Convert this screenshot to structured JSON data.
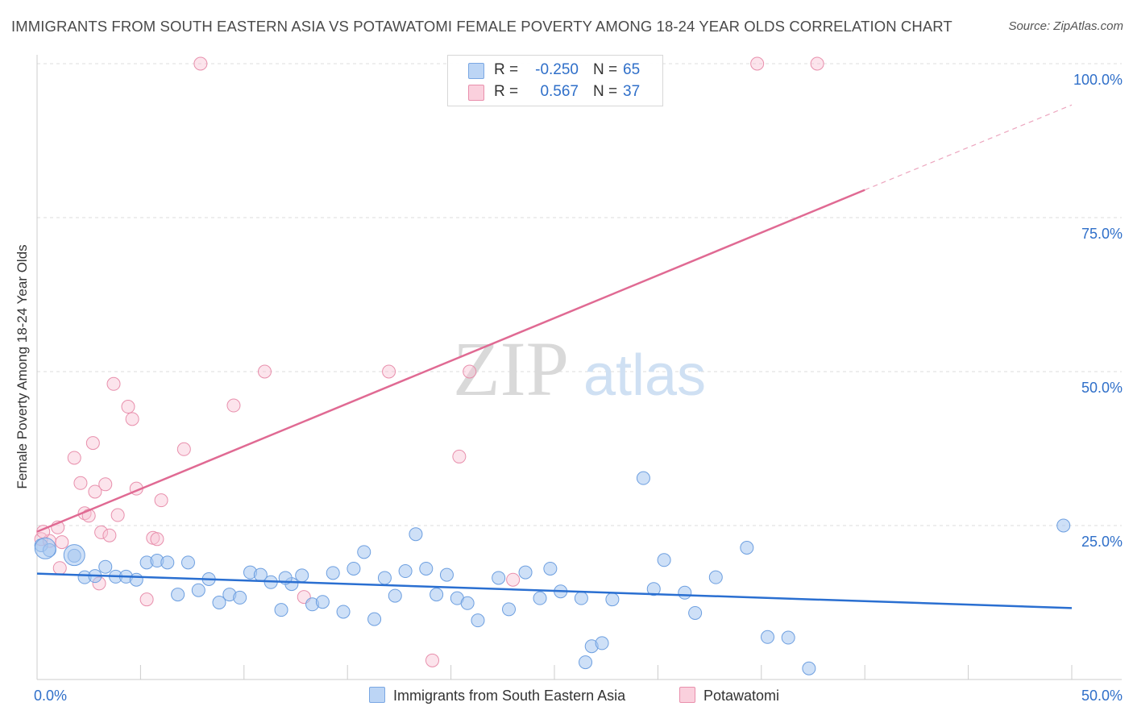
{
  "title": "IMMIGRANTS FROM SOUTH EASTERN ASIA VS POTAWATOMI FEMALE POVERTY AMONG 18-24 YEAR OLDS CORRELATION CHART",
  "source": "Source: ZipAtlas.com",
  "watermark": {
    "zip": "ZIP",
    "atlas": "atlas"
  },
  "legend": {
    "rows": [
      {
        "r_label": "R =",
        "r_value": "-0.250",
        "n_label": "N =",
        "n_value": "65",
        "color": "#a9c8f0",
        "border": "#6d9fe0"
      },
      {
        "r_label": "R =",
        "r_value": "0.567",
        "n_label": "N =",
        "n_value": "37",
        "color": "#f7c3d3",
        "border": "#e68aa8"
      }
    ]
  },
  "bottom_legend": [
    {
      "label": "Immigrants from South Eastern Asia",
      "color": "#bcd5f5",
      "border": "#7aa7e3"
    },
    {
      "label": "Potawatomi",
      "color": "#fad0dd",
      "border": "#e98fac"
    }
  ],
  "colors": {
    "blue_fill": "rgba(165,198,240,0.55)",
    "blue_stroke": "#6d9fe0",
    "blue_line": "#2a6fd1",
    "pink_fill": "rgba(248,196,213,0.45)",
    "pink_stroke": "#e88fac",
    "pink_line": "#e06a93",
    "grid": "#dddddd",
    "tick_label": "#2f6fc9"
  },
  "chart_data": {
    "type": "scatter",
    "title": "IMMIGRANTS FROM SOUTH EASTERN ASIA VS POTAWATOMI FEMALE POVERTY AMONG 18-24 YEAR OLDS CORRELATION CHART",
    "xlabel": "",
    "ylabel": "Female Poverty Among 18-24 Year Olds",
    "xlim": [
      0,
      50
    ],
    "ylim": [
      0,
      100
    ],
    "x_tick_labels": [
      "0.0%",
      "50.0%"
    ],
    "y_ticks": [
      25,
      50,
      75,
      100
    ],
    "y_tick_labels": [
      "25.0%",
      "50.0%",
      "75.0%",
      "100.0%"
    ],
    "grid": "horizontal dashed",
    "legend_position": "top-center",
    "series": [
      {
        "name": "Immigrants from South Eastern Asia",
        "color": "#6d9fe0",
        "trend": {
          "x": [
            0,
            50
          ],
          "y": [
            17.2,
            11.6
          ],
          "extended_dashed_to": null
        },
        "points": [
          [
            0.2,
            21.8
          ],
          [
            0.6,
            21.0
          ],
          [
            1.8,
            20.1
          ],
          [
            2.3,
            16.6
          ],
          [
            2.8,
            16.8
          ],
          [
            3.3,
            18.3
          ],
          [
            3.8,
            16.7
          ],
          [
            4.3,
            16.7
          ],
          [
            4.8,
            16.2
          ],
          [
            5.3,
            19.0
          ],
          [
            5.8,
            19.3
          ],
          [
            6.3,
            19.0
          ],
          [
            6.8,
            13.8
          ],
          [
            7.3,
            19.0
          ],
          [
            7.8,
            14.5
          ],
          [
            8.3,
            16.3
          ],
          [
            8.8,
            12.5
          ],
          [
            9.3,
            13.8
          ],
          [
            9.8,
            13.3
          ],
          [
            10.3,
            17.4
          ],
          [
            10.8,
            17.0
          ],
          [
            11.3,
            15.8
          ],
          [
            11.8,
            11.3
          ],
          [
            12.3,
            15.5
          ],
          [
            12.8,
            16.9
          ],
          [
            13.3,
            12.2
          ],
          [
            13.8,
            12.6
          ],
          [
            14.3,
            17.3
          ],
          [
            14.8,
            11.0
          ],
          [
            15.3,
            18.0
          ],
          [
            15.8,
            20.7
          ],
          [
            16.3,
            9.8
          ],
          [
            16.8,
            16.5
          ],
          [
            17.3,
            13.6
          ],
          [
            17.8,
            17.6
          ],
          [
            18.3,
            23.6
          ],
          [
            18.8,
            18.0
          ],
          [
            19.3,
            13.8
          ],
          [
            19.8,
            17.0
          ],
          [
            20.3,
            13.2
          ],
          [
            20.8,
            12.4
          ],
          [
            21.3,
            9.6
          ],
          [
            22.3,
            16.5
          ],
          [
            22.8,
            11.4
          ],
          [
            23.6,
            17.4
          ],
          [
            24.3,
            13.2
          ],
          [
            24.8,
            18.0
          ],
          [
            25.3,
            14.3
          ],
          [
            26.3,
            13.2
          ],
          [
            26.8,
            5.4
          ],
          [
            27.3,
            5.9
          ],
          [
            27.8,
            13.0
          ],
          [
            29.3,
            32.7
          ],
          [
            29.8,
            14.7
          ],
          [
            30.3,
            19.4
          ],
          [
            31.3,
            14.1
          ],
          [
            31.8,
            10.8
          ],
          [
            32.8,
            16.6
          ],
          [
            34.3,
            21.4
          ],
          [
            35.3,
            6.9
          ],
          [
            36.3,
            6.8
          ],
          [
            37.3,
            1.8
          ],
          [
            49.6,
            25.0
          ],
          [
            26.5,
            2.8
          ],
          [
            12.0,
            16.5
          ]
        ],
        "large_points": [
          [
            0.4,
            21.3
          ],
          [
            1.8,
            20.2
          ]
        ]
      },
      {
        "name": "Potawatomi",
        "color": "#e88fac",
        "trend": {
          "x": [
            0,
            40
          ],
          "y": [
            24.0,
            79.5
          ],
          "extended_dashed_to": [
            50,
            93.3
          ]
        },
        "points": [
          [
            0.2,
            22.8
          ],
          [
            0.6,
            22.5
          ],
          [
            1.0,
            24.7
          ],
          [
            1.1,
            18.1
          ],
          [
            1.2,
            22.3
          ],
          [
            1.8,
            36.0
          ],
          [
            2.1,
            31.9
          ],
          [
            2.3,
            27.0
          ],
          [
            2.5,
            26.6
          ],
          [
            2.7,
            38.4
          ],
          [
            2.8,
            30.5
          ],
          [
            3.0,
            15.6
          ],
          [
            3.1,
            23.9
          ],
          [
            3.3,
            31.7
          ],
          [
            3.5,
            23.4
          ],
          [
            3.7,
            48.0
          ],
          [
            3.9,
            26.7
          ],
          [
            4.4,
            44.3
          ],
          [
            4.6,
            42.3
          ],
          [
            4.8,
            31.0
          ],
          [
            5.3,
            13.0
          ],
          [
            5.6,
            23.0
          ],
          [
            5.8,
            22.8
          ],
          [
            6.0,
            29.1
          ],
          [
            7.1,
            37.4
          ],
          [
            7.9,
            100.0
          ],
          [
            9.5,
            44.5
          ],
          [
            11.0,
            50.0
          ],
          [
            12.9,
            13.4
          ],
          [
            17.0,
            50.0
          ],
          [
            19.1,
            3.1
          ],
          [
            20.4,
            36.2
          ],
          [
            20.9,
            50.0
          ],
          [
            23.0,
            16.2
          ],
          [
            34.8,
            100.0
          ],
          [
            37.7,
            100.0
          ],
          [
            0.3,
            24.0
          ]
        ]
      }
    ]
  }
}
